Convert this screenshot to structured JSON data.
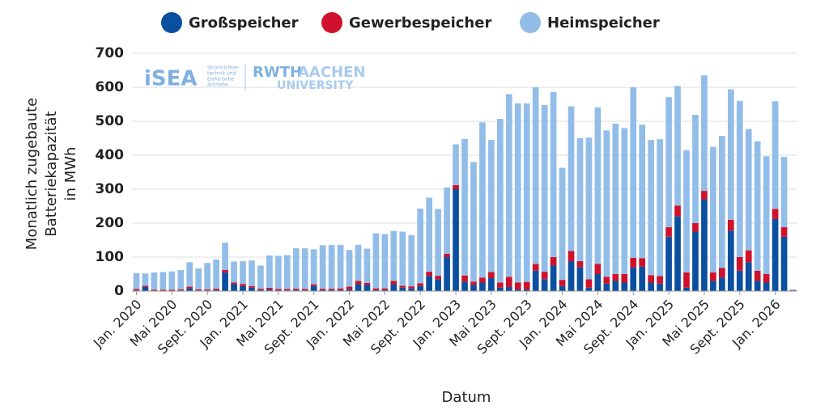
{
  "chart_data": {
    "type": "stacked-bar",
    "xlabel": "Datum",
    "ylabel_lines": [
      "Monatlich zugebaute",
      "Batteriekapazität",
      "in MWh"
    ],
    "annotations": [
      "iSEA",
      "Stromrichter-",
      "technik und",
      "Elektrische",
      "Antriebe",
      "RWTH",
      "AACHEN",
      "UNIVERSITY"
    ],
    "categories": [
      "Jan. 2020",
      null,
      null,
      null,
      "Mai 2020",
      null,
      null,
      null,
      "Sept. 2020",
      null,
      null,
      null,
      "Jan. 2021",
      null,
      null,
      null,
      "Mai 2021",
      null,
      null,
      null,
      "Sept. 2021",
      null,
      null,
      null,
      "Jan. 2022",
      null,
      null,
      null,
      "Mai 2022",
      null,
      null,
      null,
      "Sept. 2022",
      null,
      null,
      null,
      "Jan. 2023",
      null,
      null,
      null,
      "Mai 2023",
      null,
      null,
      null,
      "Sept. 2023",
      null,
      null,
      null,
      "Jan. 2024",
      null,
      null,
      null,
      "Mai 2024",
      null,
      null,
      null,
      "Sept. 2024",
      null,
      null,
      null,
      "Jan. 2025",
      null,
      null,
      null,
      "Mai 2025",
      null,
      null,
      null,
      "Sept. 2025",
      null,
      null,
      null,
      "Jan. 2026",
      null,
      null
    ],
    "series": [
      {
        "name": "Großspeicher",
        "color": "#0a4fa0",
        "values": [
          2,
          12,
          1,
          1,
          1,
          2,
          8,
          2,
          2,
          3,
          55,
          20,
          15,
          10,
          3,
          5,
          2,
          2,
          3,
          2,
          15,
          3,
          3,
          3,
          5,
          20,
          18,
          3,
          3,
          20,
          10,
          8,
          15,
          45,
          35,
          100,
          300,
          28,
          18,
          25,
          38,
          10,
          12,
          5,
          5,
          60,
          35,
          75,
          15,
          88,
          70,
          10,
          50,
          22,
          30,
          25,
          70,
          72,
          25,
          22,
          160,
          220,
          10,
          175,
          270,
          30,
          40,
          178,
          60,
          85,
          30,
          25,
          212,
          160,
          2
        ]
      },
      {
        "name": "Gewerbespeicher",
        "color": "#d0112b",
        "values": [
          4,
          4,
          3,
          3,
          3,
          3,
          5,
          3,
          3,
          4,
          7,
          5,
          6,
          5,
          4,
          5,
          4,
          4,
          4,
          4,
          5,
          4,
          4,
          5,
          8,
          10,
          6,
          5,
          5,
          10,
          6,
          6,
          8,
          12,
          10,
          10,
          12,
          18,
          10,
          15,
          18,
          15,
          30,
          20,
          22,
          20,
          22,
          25,
          18,
          30,
          18,
          25,
          30,
          20,
          20,
          25,
          28,
          25,
          22,
          22,
          28,
          32,
          45,
          25,
          25,
          25,
          28,
          32,
          40,
          35,
          30,
          25,
          30,
          28,
          1
        ]
      },
      {
        "name": "Heimspeicher",
        "color": "#92bde8",
        "values": [
          47,
          36,
          51,
          52,
          54,
          57,
          72,
          62,
          78,
          86,
          81,
          62,
          67,
          75,
          68,
          95,
          98,
          100,
          119,
          120,
          103,
          128,
          129,
          128,
          108,
          106,
          101,
          162,
          160,
          147,
          159,
          151,
          220,
          218,
          197,
          195,
          120,
          402,
          352,
          457,
          389,
          482,
          538,
          528,
          526,
          520,
          491,
          486,
          330,
          426,
          362,
          417,
          461,
          431,
          443,
          430,
          502,
          393,
          398,
          403,
          383,
          352,
          360,
          319,
          340,
          370,
          389,
          384,
          460,
          357,
          381,
          347,
          317,
          207,
          2
        ]
      }
    ],
    "ylim": [
      0,
      700
    ],
    "yticks": [
      0,
      100,
      200,
      300,
      400,
      500,
      600,
      700
    ],
    "grid": true,
    "legend": "top"
  }
}
